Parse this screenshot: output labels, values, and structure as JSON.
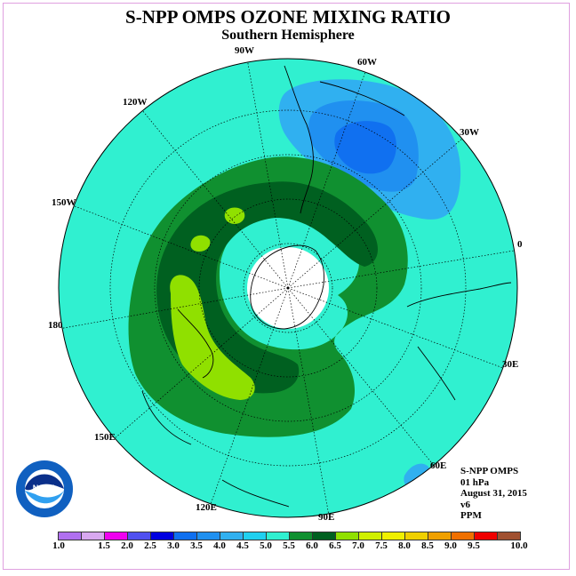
{
  "title": "S-NPP OMPS OZONE MIXING RATIO",
  "subtitle": "Southern Hemisphere",
  "longitude_labels": {
    "lon_90w": "90W",
    "lon_60w": "60W",
    "lon_120w": "120W",
    "lon_30w": "30W",
    "lon_150w": "150W",
    "lon_0": "0",
    "lon_180": "180",
    "lon_30e": "30E",
    "lon_150e": "150E",
    "lon_60e": "60E",
    "lon_120e": "120E",
    "lon_90e": "90E"
  },
  "info": {
    "instrument": "S-NPP OMPS",
    "level": "01 hPa",
    "date": "August 31, 2015",
    "version": "v6",
    "units": "PPM"
  },
  "colorbar": {
    "colors": [
      "#b070f0",
      "#d8a8f0",
      "#f000f0",
      "#5050f0",
      "#0000e0",
      "#1070f0",
      "#2090f0",
      "#30b0f0",
      "#20d0f0",
      "#30f0d0",
      "#109030",
      "#006020",
      "#90e000",
      "#d0f000",
      "#f0f000",
      "#f0d000",
      "#f0a000",
      "#f07000",
      "#f00000",
      "#a05030"
    ],
    "labels": [
      "1.0",
      "1.5",
      "2.0",
      "2.5",
      "3.0",
      "3.5",
      "4.0",
      "4.5",
      "5.0",
      "5.5",
      "6.0",
      "6.5",
      "7.0",
      "7.5",
      "8.0",
      "8.5",
      "9.0",
      "9.5",
      "10.0"
    ]
  },
  "map_colors": {
    "background": "#30f0d0",
    "band_5_5": "#109030",
    "band_6_0": "#006020",
    "band_6_5": "#90e000",
    "low_4_0": "#30b0f0",
    "low_3_5": "#2090f0",
    "low_3_0": "#1070f0",
    "polar_night": "#ffffff"
  }
}
